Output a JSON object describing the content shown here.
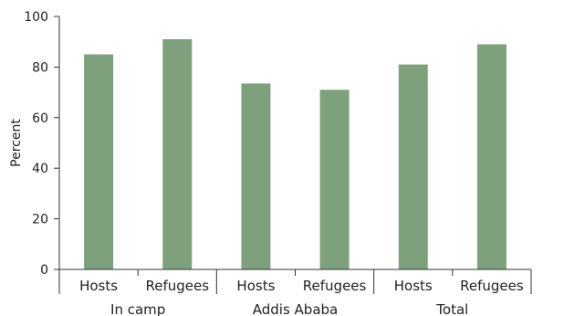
{
  "chart_data": {
    "type": "bar",
    "title": "",
    "xlabel": "",
    "ylabel": "Percent",
    "ylim": [
      0,
      100
    ],
    "yticks": [
      0,
      20,
      40,
      60,
      80,
      100
    ],
    "grid": false,
    "legend": "none",
    "bar_color": "#7fa07c",
    "categories": [
      "Hosts",
      "Refugees",
      "Hosts",
      "Refugees",
      "Hosts",
      "Refugees"
    ],
    "groups": [
      {
        "name": "In camp",
        "categories": [
          0,
          1
        ]
      },
      {
        "name": "Addis Ababa",
        "categories": [
          2,
          3
        ]
      },
      {
        "name": "Total",
        "categories": [
          4,
          5
        ]
      }
    ],
    "values": [
      85,
      91,
      73.5,
      71,
      81,
      89
    ]
  }
}
